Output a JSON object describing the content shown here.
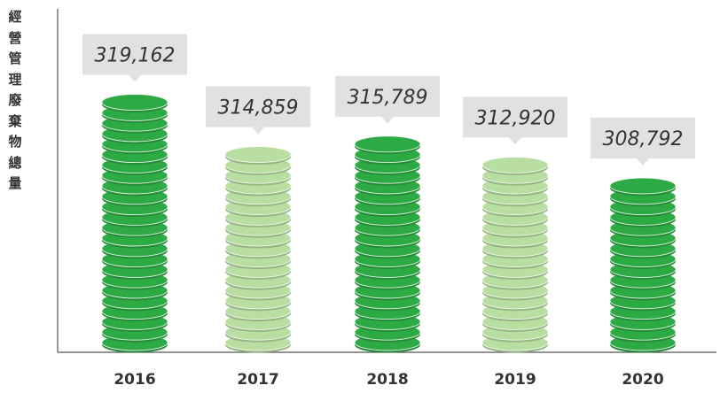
{
  "chart_data": {
    "type": "bar",
    "title": "",
    "ylabel": "經營管理廢棄物總量",
    "xlabel": "",
    "categories": [
      "2016",
      "2017",
      "2018",
      "2019",
      "2020"
    ],
    "values": [
      319162,
      314859,
      315789,
      312920,
      308792
    ],
    "value_labels": [
      "319,162",
      "314,859",
      "315,789",
      "312,920",
      "308,792"
    ],
    "bar_colors": [
      "#2eaa45",
      "#b8dea2",
      "#2eaa45",
      "#b8dea2",
      "#2eaa45"
    ],
    "grid": false,
    "legend": "none",
    "style": "stacked-coins"
  }
}
